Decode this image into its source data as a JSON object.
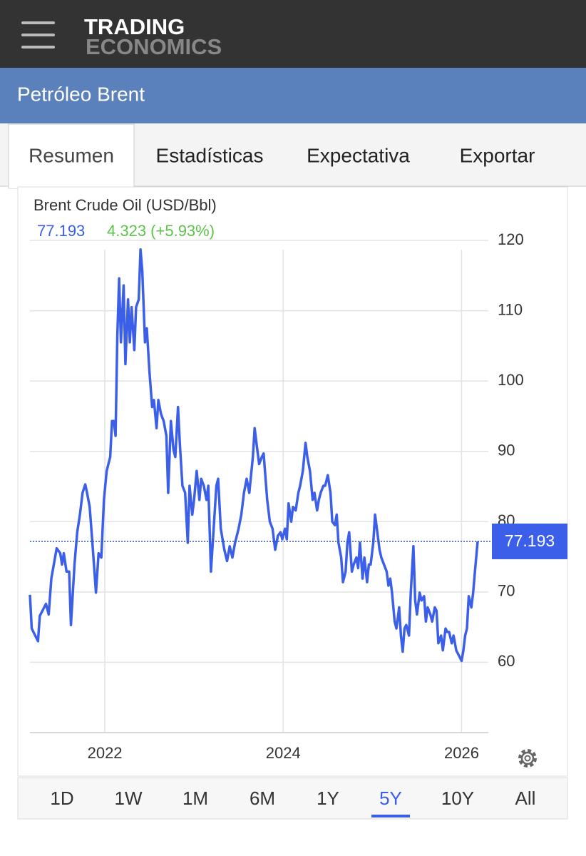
{
  "header": {
    "logo_top": "TRADING",
    "logo_bottom": "ECONOMICS"
  },
  "page_title": "Petróleo Brent",
  "tabs": [
    "Resumen",
    "Estadísticas",
    "Expectativa",
    "Exportar"
  ],
  "active_tab": 0,
  "ranges": [
    "1D",
    "1W",
    "1M",
    "6M",
    "1Y",
    "5Y",
    "10Y",
    "All"
  ],
  "active_range": 5,
  "chart_data": {
    "type": "line",
    "title": "Brent Crude Oil (USD/Bbl)",
    "last_value": 77.193,
    "change": "4.323 (+5.93%)",
    "color": "#3b5fe8",
    "change_color": "#5cc448",
    "x": [
      2021.16,
      2021.18,
      2021.25,
      2021.27,
      2021.34,
      2021.37,
      2021.4,
      2021.46,
      2021.5,
      2021.52,
      2021.54,
      2021.57,
      2021.6,
      2021.62,
      2021.66,
      2021.69,
      2021.72,
      2021.75,
      2021.78,
      2021.8,
      2021.83,
      2021.86,
      2021.9,
      2021.93,
      2021.96,
      2021.99,
      2022.02,
      2022.06,
      2022.08,
      2022.1,
      2022.12,
      2022.14,
      2022.16,
      2022.18,
      2022.21,
      2022.23,
      2022.26,
      2022.28,
      2022.3,
      2022.33,
      2022.35,
      2022.38,
      2022.4,
      2022.42,
      2022.45,
      2022.47,
      2022.5,
      2022.53,
      2022.55,
      2022.58,
      2022.6,
      2022.63,
      2022.66,
      2022.69,
      2022.71,
      2022.74,
      2022.77,
      2022.79,
      2022.82,
      2022.84,
      2022.87,
      2022.9,
      2022.93,
      2022.95,
      2022.98,
      2023.0,
      2023.03,
      2023.06,
      2023.08,
      2023.11,
      2023.14,
      2023.16,
      2023.19,
      2023.22,
      2023.25,
      2023.27,
      2023.3,
      2023.34,
      2023.37,
      2023.4,
      2023.43,
      2023.46,
      2023.5,
      2023.53,
      2023.56,
      2023.59,
      2023.62,
      2023.66,
      2023.68,
      2023.7,
      2023.73,
      2023.76,
      2023.78,
      2023.82,
      2023.85,
      2023.88,
      2023.91,
      2023.94,
      2023.97,
      2023.99,
      2024.02,
      2024.04,
      2024.06,
      2024.09,
      2024.11,
      2024.14,
      2024.17,
      2024.19,
      2024.22,
      2024.25,
      2024.27,
      2024.3,
      2024.33,
      2024.35,
      2024.38,
      2024.4,
      2024.42,
      2024.45,
      2024.47,
      2024.5,
      2024.53,
      2024.55,
      2024.58,
      2024.6,
      2024.62,
      2024.65,
      2024.67,
      2024.7,
      2024.72,
      2024.74,
      2024.77,
      2024.79,
      2024.82,
      2024.84,
      2024.86,
      2024.89,
      2024.91,
      2024.94,
      2024.96,
      2024.98,
      2025.01,
      2025.03,
      2025.06,
      2025.08,
      2025.1,
      2025.13,
      2025.16,
      2025.18,
      2025.2,
      2025.22,
      2025.25,
      2025.27,
      2025.3,
      2025.32,
      2025.34,
      2025.36,
      2025.38,
      2025.41,
      2025.43,
      2025.46,
      2025.48,
      2025.5,
      2025.53,
      2025.55,
      2025.58,
      2025.6,
      2025.62,
      2025.65,
      2025.67,
      2025.7,
      2025.72,
      2025.74,
      2025.77,
      2025.79,
      2025.82,
      2025.84,
      2025.86,
      2025.89,
      2025.91,
      2025.94,
      2025.96,
      2025.98,
      2026.0,
      2026.02,
      2026.04,
      2026.06,
      2026.08,
      2026.1,
      2026.11,
      2026.13,
      2026.15,
      2026.18
    ],
    "values": [
      69.6,
      64.8,
      63.0,
      66.6,
      68.3,
      66.8,
      71.9,
      76.2,
      75.5,
      73.9,
      75.5,
      72.9,
      72.9,
      65.3,
      73.9,
      78.5,
      81.0,
      84.1,
      85.3,
      84.1,
      82.1,
      77.0,
      69.9,
      75.5,
      74.9,
      83.1,
      87.2,
      89.2,
      94.3,
      94.3,
      92.2,
      106.5,
      114.6,
      105.5,
      113.6,
      102.4,
      111.6,
      105.5,
      110.5,
      104.4,
      110.5,
      111.6,
      118.7,
      115.6,
      105.5,
      107.5,
      101.4,
      96.3,
      97.3,
      93.3,
      97.3,
      95.3,
      94.3,
      92.2,
      84.1,
      94.3,
      90.2,
      89.2,
      96.3,
      91.2,
      85.1,
      84.1,
      77.0,
      85.1,
      81.0,
      83.1,
      87.2,
      83.1,
      86.1,
      85.1,
      83.1,
      85.1,
      72.9,
      79.0,
      85.1,
      86.1,
      79.0,
      76.0,
      74.4,
      76.5,
      74.9,
      77.0,
      79.0,
      81.0,
      84.1,
      86.1,
      84.1,
      89.2,
      93.3,
      91.2,
      88.2,
      89.2,
      89.7,
      83.1,
      80.0,
      79.0,
      76.0,
      78.0,
      78.5,
      77.5,
      79.0,
      77.5,
      82.6,
      80.0,
      82.1,
      81.6,
      84.1,
      85.1,
      87.2,
      91.2,
      89.2,
      87.2,
      83.1,
      84.1,
      81.6,
      83.1,
      84.1,
      85.1,
      85.1,
      86.6,
      84.1,
      80.0,
      79.5,
      81.0,
      77.0,
      74.9,
      71.4,
      72.9,
      77.0,
      78.5,
      72.9,
      73.9,
      74.9,
      73.4,
      77.0,
      71.9,
      74.9,
      71.4,
      73.9,
      73.9,
      77.0,
      81.0,
      78.0,
      76.0,
      74.9,
      73.9,
      72.9,
      70.9,
      71.9,
      69.9,
      65.8,
      64.8,
      67.8,
      63.8,
      61.5,
      64.8,
      65.3,
      63.8,
      69.9,
      76.5,
      68.8,
      66.8,
      69.9,
      68.8,
      69.4,
      65.8,
      67.8,
      66.8,
      65.8,
      67.8,
      67.3,
      62.7,
      63.8,
      61.7,
      64.8,
      64.3,
      64.3,
      62.7,
      63.8,
      61.7,
      61.2,
      60.7,
      60.2,
      61.7,
      63.8,
      64.8,
      69.4,
      68.3,
      67.8,
      69.9,
      72.9,
      77.193
    ],
    "xlim": [
      2021.16,
      2026.3
    ],
    "xticks": [
      2022,
      2024,
      2026
    ],
    "ylim": [
      50,
      120
    ],
    "yticks": [
      60,
      70,
      80,
      90,
      100,
      110,
      120
    ],
    "grid": true
  }
}
